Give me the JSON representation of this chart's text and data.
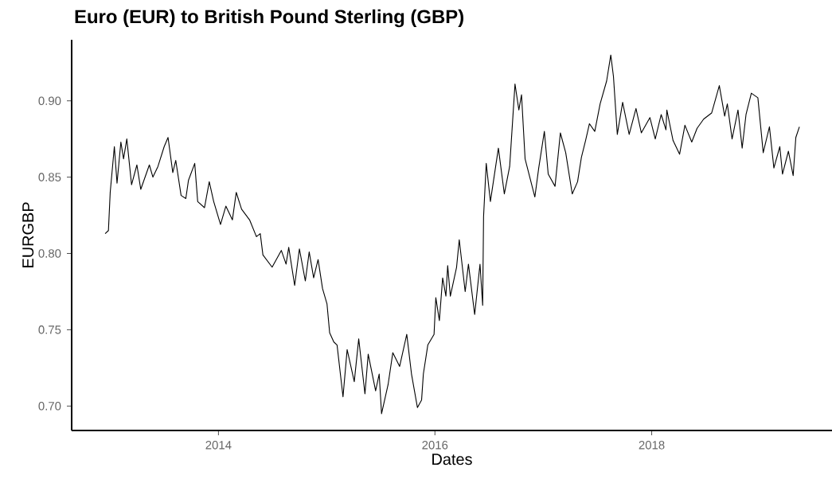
{
  "chart_data": {
    "type": "line",
    "title": "Euro (EUR) to British Pound Sterling (GBP)",
    "xlabel": "Dates",
    "ylabel": "EURGBP",
    "color": "#000000",
    "x": [
      "2012-12-15",
      "2012-12-26",
      "2013-01-01",
      "2013-01-15",
      "2013-01-24",
      "2013-02-06",
      "2013-02-15",
      "2013-02-26",
      "2013-03-14",
      "2013-04-01",
      "2013-04-14",
      "2013-05-13",
      "2013-05-25",
      "2013-06-11",
      "2013-07-02",
      "2013-07-15",
      "2013-07-31",
      "2013-08-10",
      "2013-08-28",
      "2013-09-13",
      "2013-09-22",
      "2013-10-13",
      "2013-10-23",
      "2013-11-15",
      "2013-12-01",
      "2013-12-16",
      "2014-01-08",
      "2014-01-26",
      "2014-02-17",
      "2014-03-02",
      "2014-03-20",
      "2014-04-16",
      "2014-05-09",
      "2014-05-22",
      "2014-05-31",
      "2014-07-01",
      "2014-08-01",
      "2014-08-17",
      "2014-08-26",
      "2014-09-15",
      "2014-10-01",
      "2014-10-21",
      "2014-11-03",
      "2014-11-18",
      "2014-12-03",
      "2014-12-18",
      "2015-01-02",
      "2015-01-11",
      "2015-01-25",
      "2015-02-05",
      "2015-02-25",
      "2015-03-11",
      "2015-04-04",
      "2015-04-19",
      "2015-05-10",
      "2015-05-21",
      "2015-06-15",
      "2015-06-27",
      "2015-07-05",
      "2015-07-27",
      "2015-08-12",
      "2015-09-04",
      "2015-09-28",
      "2015-10-14",
      "2015-11-03",
      "2015-11-17",
      "2015-11-23",
      "2015-12-08",
      "2015-12-29",
      "2016-01-04",
      "2016-01-16",
      "2016-01-27",
      "2016-02-07",
      "2016-02-13",
      "2016-02-22",
      "2016-03-14",
      "2016-03-23",
      "2016-04-12",
      "2016-04-23",
      "2016-05-14",
      "2016-06-01",
      "2016-06-10",
      "2016-06-13",
      "2016-06-22",
      "2016-07-06",
      "2016-08-02",
      "2016-08-22",
      "2016-09-09",
      "2016-09-27",
      "2016-10-10",
      "2016-10-19",
      "2016-10-31",
      "2016-12-03",
      "2016-12-16",
      "2017-01-04",
      "2017-01-17",
      "2017-02-09",
      "2017-02-27",
      "2017-03-17",
      "2017-04-08",
      "2017-04-26",
      "2017-05-09",
      "2017-05-23",
      "2017-06-05",
      "2017-06-23",
      "2017-07-11",
      "2017-08-02",
      "2017-08-16",
      "2017-08-25",
      "2017-09-07",
      "2017-09-25",
      "2017-10-17",
      "2017-11-09",
      "2017-11-27",
      "2017-12-26",
      "2018-01-13",
      "2018-02-02",
      "2018-02-18",
      "2018-02-21",
      "2018-03-14",
      "2018-04-05",
      "2018-04-23",
      "2018-05-16",
      "2018-06-03",
      "2018-06-25",
      "2018-07-22",
      "2018-08-17",
      "2018-09-04",
      "2018-09-13",
      "2018-09-29",
      "2018-10-19",
      "2018-11-02",
      "2018-11-15",
      "2018-12-03",
      "2018-12-25",
      "2019-01-12",
      "2019-02-02",
      "2019-02-17",
      "2019-03-09",
      "2019-03-18",
      "2019-04-07",
      "2019-04-23",
      "2019-05-02",
      "2019-05-14"
    ],
    "values": [
      0.813,
      0.815,
      0.84,
      0.87,
      0.846,
      0.873,
      0.862,
      0.875,
      0.845,
      0.858,
      0.842,
      0.858,
      0.85,
      0.857,
      0.87,
      0.876,
      0.853,
      0.861,
      0.838,
      0.836,
      0.848,
      0.859,
      0.834,
      0.83,
      0.847,
      0.834,
      0.819,
      0.831,
      0.822,
      0.84,
      0.829,
      0.822,
      0.811,
      0.813,
      0.799,
      0.791,
      0.802,
      0.793,
      0.804,
      0.779,
      0.803,
      0.782,
      0.801,
      0.784,
      0.796,
      0.777,
      0.767,
      0.748,
      0.742,
      0.74,
      0.706,
      0.737,
      0.716,
      0.744,
      0.708,
      0.734,
      0.71,
      0.721,
      0.695,
      0.714,
      0.735,
      0.726,
      0.747,
      0.721,
      0.699,
      0.704,
      0.721,
      0.74,
      0.747,
      0.771,
      0.756,
      0.784,
      0.772,
      0.792,
      0.772,
      0.791,
      0.809,
      0.775,
      0.793,
      0.76,
      0.793,
      0.766,
      0.824,
      0.859,
      0.834,
      0.869,
      0.839,
      0.857,
      0.911,
      0.894,
      0.904,
      0.862,
      0.837,
      0.856,
      0.88,
      0.852,
      0.844,
      0.879,
      0.866,
      0.839,
      0.847,
      0.863,
      0.874,
      0.885,
      0.88,
      0.898,
      0.913,
      0.93,
      0.916,
      0.878,
      0.899,
      0.878,
      0.895,
      0.879,
      0.889,
      0.875,
      0.891,
      0.881,
      0.894,
      0.874,
      0.865,
      0.884,
      0.873,
      0.882,
      0.888,
      0.892,
      0.91,
      0.89,
      0.898,
      0.875,
      0.894,
      0.869,
      0.891,
      0.905,
      0.902,
      0.866,
      0.883,
      0.856,
      0.87,
      0.852,
      0.867,
      0.851,
      0.876,
      0.883
    ],
    "xlim": [
      "2012-08-24",
      "2019-09-01"
    ],
    "ylim": [
      0.684,
      0.94
    ],
    "xticks": [
      "2014",
      "2016",
      "2018"
    ],
    "yticks": [
      {
        "value": 0.7,
        "label": "0.70"
      },
      {
        "value": 0.75,
        "label": "0.75"
      },
      {
        "value": 0.8,
        "label": "0.80"
      },
      {
        "value": 0.85,
        "label": "0.85"
      },
      {
        "value": 0.9,
        "label": "0.90"
      }
    ]
  }
}
